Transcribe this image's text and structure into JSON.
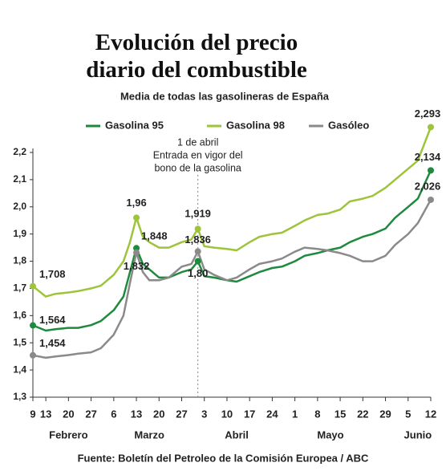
{
  "chart_data": {
    "type": "line",
    "title": "Evolución del precio diario del combustible",
    "subtitle": "Media de todas las gasolineras de España",
    "source": "Fuente: Boletín del Petroleo de la Comisión Europea / ABC",
    "x": [
      0,
      4,
      7,
      11,
      14,
      18,
      21,
      25,
      28,
      30,
      32,
      34,
      36,
      39,
      42,
      46,
      49,
      51,
      53,
      56,
      60,
      63,
      67,
      70,
      74,
      77,
      81,
      84,
      88,
      91,
      95,
      98,
      102,
      105,
      109,
      112,
      116,
      119,
      123
    ],
    "series": [
      {
        "name": "Gasolina 95",
        "color": "#1e8a3e",
        "values": [
          1.564,
          1.545,
          1.55,
          1.555,
          1.555,
          1.565,
          1.58,
          1.62,
          1.67,
          1.76,
          1.848,
          1.79,
          1.77,
          1.74,
          1.74,
          1.76,
          1.77,
          1.8,
          1.745,
          1.74,
          1.73,
          1.725,
          1.745,
          1.76,
          1.775,
          1.78,
          1.8,
          1.82,
          1.83,
          1.84,
          1.85,
          1.87,
          1.89,
          1.9,
          1.92,
          1.96,
          2.0,
          2.03,
          2.134
        ],
        "value_labels": [
          "1,564",
          null,
          null,
          null,
          null,
          null,
          null,
          null,
          null,
          null,
          "1,848",
          null,
          null,
          null,
          null,
          null,
          null,
          "1,80",
          null,
          null,
          null,
          null,
          null,
          null,
          null,
          null,
          null,
          null,
          null,
          null,
          null,
          null,
          null,
          null,
          null,
          null,
          null,
          null,
          "2,134"
        ]
      },
      {
        "name": "Gasolina 98",
        "color": "#9dc43a",
        "values": [
          1.708,
          1.67,
          1.68,
          1.685,
          1.69,
          1.7,
          1.71,
          1.75,
          1.8,
          1.87,
          1.96,
          1.89,
          1.87,
          1.85,
          1.85,
          1.87,
          1.88,
          1.919,
          1.855,
          1.85,
          1.845,
          1.84,
          1.87,
          1.89,
          1.9,
          1.905,
          1.93,
          1.95,
          1.97,
          1.975,
          1.99,
          2.02,
          2.03,
          2.04,
          2.07,
          2.1,
          2.14,
          2.17,
          2.293
        ],
        "value_labels": [
          "1,708",
          null,
          null,
          null,
          null,
          null,
          null,
          null,
          null,
          null,
          "1,96",
          null,
          null,
          null,
          null,
          null,
          null,
          "1,919",
          null,
          null,
          null,
          null,
          null,
          null,
          null,
          null,
          null,
          null,
          null,
          null,
          null,
          null,
          null,
          null,
          null,
          null,
          null,
          null,
          "2,293"
        ]
      },
      {
        "name": "Gasóleo",
        "color": "#8a8a8a",
        "values": [
          1.454,
          1.445,
          1.45,
          1.455,
          1.46,
          1.465,
          1.48,
          1.53,
          1.6,
          1.72,
          1.832,
          1.76,
          1.73,
          1.73,
          1.74,
          1.78,
          1.79,
          1.836,
          1.77,
          1.75,
          1.73,
          1.74,
          1.77,
          1.79,
          1.8,
          1.81,
          1.835,
          1.85,
          1.845,
          1.84,
          1.83,
          1.82,
          1.8,
          1.8,
          1.82,
          1.86,
          1.9,
          1.94,
          2.026
        ],
        "value_labels": [
          "1,454",
          null,
          null,
          null,
          null,
          null,
          null,
          null,
          null,
          null,
          "1,832",
          null,
          null,
          null,
          null,
          null,
          null,
          "1,836",
          null,
          null,
          null,
          null,
          null,
          null,
          null,
          null,
          null,
          null,
          null,
          null,
          null,
          null,
          null,
          null,
          null,
          null,
          null,
          null,
          "2,026"
        ]
      }
    ],
    "xlim": [
      0,
      123
    ],
    "xticks": [
      {
        "value": 0,
        "label": "9"
      },
      {
        "value": 4,
        "label": "13"
      },
      {
        "value": 11,
        "label": "20"
      },
      {
        "value": 18,
        "label": "27"
      },
      {
        "value": 25,
        "label": "6"
      },
      {
        "value": 32,
        "label": "13"
      },
      {
        "value": 39,
        "label": "20"
      },
      {
        "value": 46,
        "label": "27"
      },
      {
        "value": 53,
        "label": "3"
      },
      {
        "value": 60,
        "label": "10"
      },
      {
        "value": 67,
        "label": "17"
      },
      {
        "value": 74,
        "label": "24"
      },
      {
        "value": 81,
        "label": "1"
      },
      {
        "value": 88,
        "label": "8"
      },
      {
        "value": 95,
        "label": "15"
      },
      {
        "value": 102,
        "label": "22"
      },
      {
        "value": 109,
        "label": "29"
      },
      {
        "value": 116,
        "label": "5"
      },
      {
        "value": 123,
        "label": "12"
      }
    ],
    "months": [
      {
        "value": 11,
        "label": "Febrero"
      },
      {
        "value": 36,
        "label": "Marzo"
      },
      {
        "value": 63,
        "label": "Abril"
      },
      {
        "value": 92,
        "label": "Mayo"
      },
      {
        "value": 119,
        "label": "Junio"
      }
    ],
    "ylim": [
      1.3,
      2.2
    ],
    "yticks": [
      {
        "value": 1.3,
        "label": "1,3"
      },
      {
        "value": 1.4,
        "label": "1,4"
      },
      {
        "value": 1.5,
        "label": "1,5"
      },
      {
        "value": 1.6,
        "label": "1,6"
      },
      {
        "value": 1.7,
        "label": "1,7"
      },
      {
        "value": 1.8,
        "label": "1,8"
      },
      {
        "value": 1.9,
        "label": "1,9"
      },
      {
        "value": 2.0,
        "label": "2,0"
      },
      {
        "value": 2.1,
        "label": "2,1"
      },
      {
        "value": 2.2,
        "label": "2,2"
      }
    ],
    "annotation": {
      "x": 51,
      "lines": [
        "1 de abril",
        "Entrada en vigor del",
        "bono de la gasolina"
      ]
    },
    "legend": "top"
  }
}
